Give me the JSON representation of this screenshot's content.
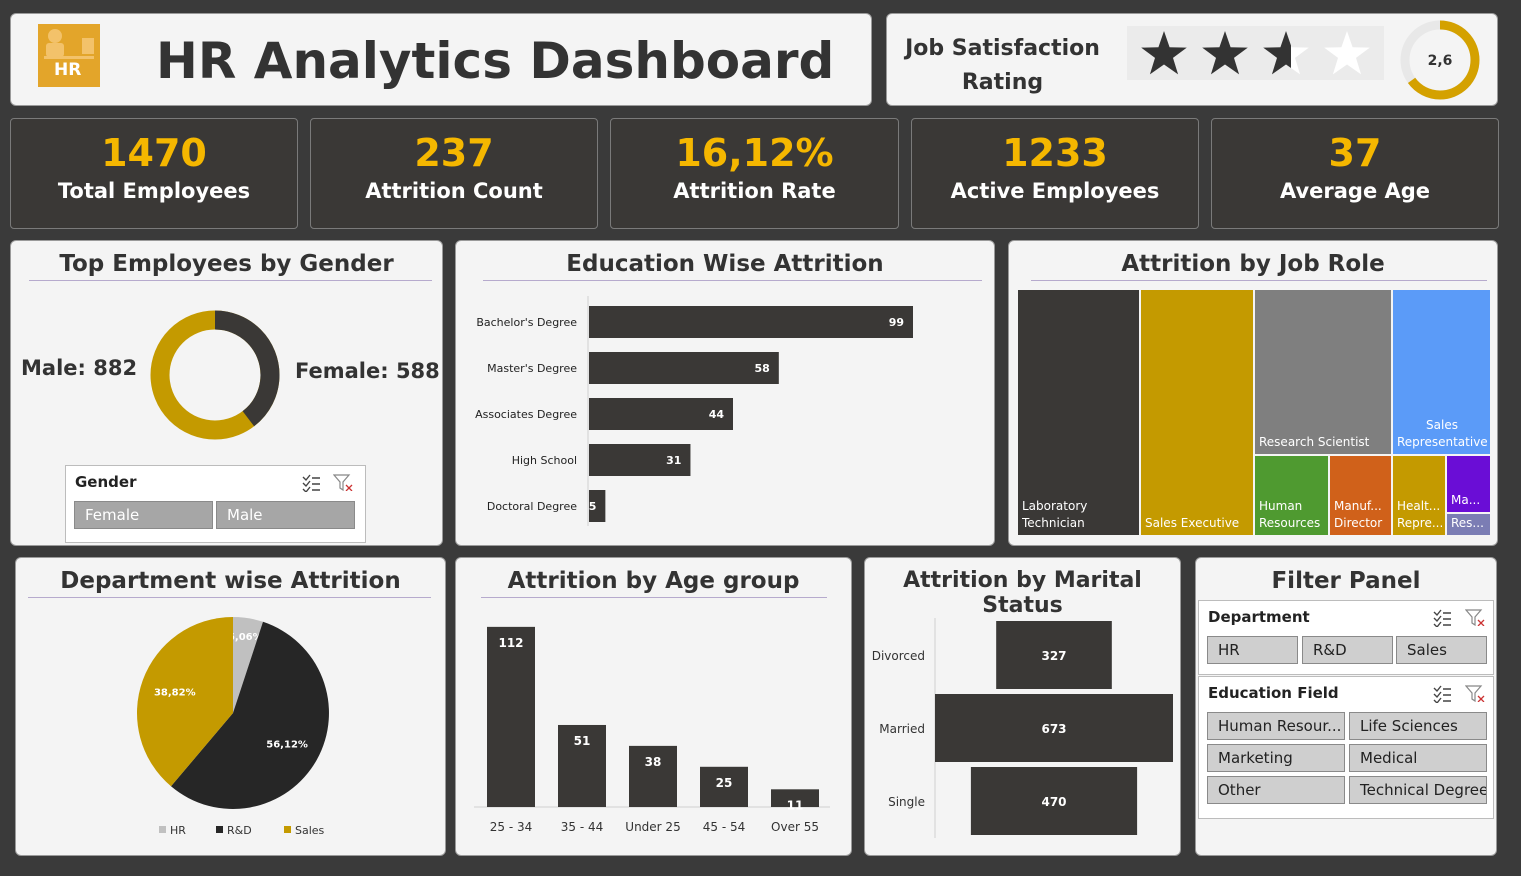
{
  "header": {
    "logo_text": "HR",
    "title": "HR Analytics Dashboard"
  },
  "satisfaction": {
    "label_line1": "Job Satisfaction",
    "label_line2": "Rating",
    "value": "2,6",
    "rating": 2.6,
    "max": 4
  },
  "kpis": [
    {
      "value": "1470",
      "label": "Total Employees"
    },
    {
      "value": "237",
      "label": "Attrition Count"
    },
    {
      "value": "16,12%",
      "label": "Attrition Rate"
    },
    {
      "value": "1233",
      "label": "Active Employees"
    },
    {
      "value": "37",
      "label": "Average Age"
    }
  ],
  "gender": {
    "title": "Top Employees by Gender",
    "male_label": "Male: 882",
    "female_label": "Female: 588",
    "slicer_title": "Gender",
    "options": [
      "Female",
      "Male"
    ]
  },
  "education": {
    "title": "Education Wise Attrition",
    "chart_data": {
      "type": "bar",
      "orientation": "horizontal",
      "categories": [
        "Bachelor's Degree",
        "Master's Degree",
        "Associates Degree",
        "High School",
        "Doctoral Degree"
      ],
      "values": [
        99,
        58,
        44,
        31,
        5
      ],
      "labels": [
        "99",
        "58",
        "44",
        "31",
        "5"
      ],
      "xlim": [
        0,
        110
      ]
    }
  },
  "jobrole": {
    "title": "Attrition by Job Role",
    "chart_data": {
      "type": "treemap",
      "categories": [
        "Laboratory Technician",
        "Sales Executive",
        "Research Scientist",
        "Sales Representative",
        "Human Resources",
        "Manuf...",
        "Healt...",
        "Ma...",
        "Res..."
      ],
      "labels": [
        [
          "Laboratory",
          "Technician"
        ],
        [
          "Sales Executive"
        ],
        [
          "Research Scientist"
        ],
        [
          "Sales",
          "Representative"
        ],
        [
          "Human",
          "Resources"
        ],
        [
          "Manuf...",
          "Director"
        ],
        [
          "Healt...",
          "Repre..."
        ],
        [
          "Ma..."
        ],
        [
          "Res..."
        ]
      ],
      "colors": [
        "#3a3836",
        "#c49a00",
        "#7f7f7f",
        "#5b9bf8",
        "#4f9a30",
        "#d0611a",
        "#c49a00",
        "#6a0dd6",
        "#7b7db4"
      ]
    }
  },
  "department": {
    "title": "Department wise Attrition",
    "chart_data": {
      "type": "pie",
      "categories": [
        "HR",
        "R&D",
        "Sales"
      ],
      "values": [
        5.06,
        56.12,
        38.82
      ],
      "labels": [
        "5,06%",
        "56,12%",
        "38,82%"
      ],
      "colors": [
        "#c0c0c0",
        "#262626",
        "#c49a00"
      ]
    }
  },
  "age": {
    "title": "Attrition by Age group",
    "chart_data": {
      "type": "bar",
      "categories": [
        "25 - 34",
        "35 - 44",
        "Under 25",
        "45 - 54",
        "Over 55"
      ],
      "values": [
        112,
        51,
        38,
        25,
        11
      ],
      "labels": [
        "112",
        "51",
        "38",
        "25",
        "11"
      ],
      "ylim": [
        0,
        120
      ]
    }
  },
  "marital": {
    "title": "Attrition by Marital Status",
    "chart_data": {
      "type": "bar",
      "orientation": "horizontal-funnel",
      "categories": [
        "Divorced",
        "Married",
        "Single"
      ],
      "values": [
        327,
        673,
        470
      ],
      "labels": [
        "327",
        "673",
        "470"
      ]
    }
  },
  "filter": {
    "title": "Filter Panel",
    "department": {
      "title": "Department",
      "options": [
        "HR",
        "R&D",
        "Sales"
      ]
    },
    "education_field": {
      "title": "Education Field",
      "options": [
        "Human Resour...",
        "Life Sciences",
        "Marketing",
        "Medical",
        "Other",
        "Technical Degree"
      ]
    }
  }
}
